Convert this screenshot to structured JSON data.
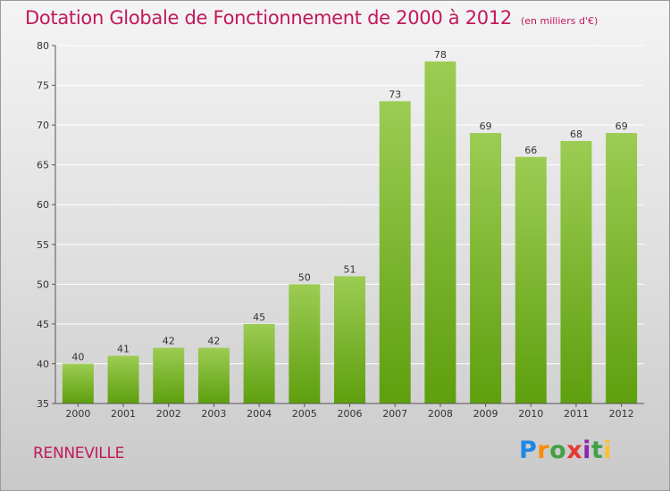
{
  "title": "Dotation Globale de Fonctionnement de 2000 à 2012",
  "subtitle": "(en milliers d'€)",
  "commune": "RENNEVILLE",
  "logo": {
    "text": "Proxiti",
    "letters": [
      {
        "ch": "P",
        "color": "#1e88e5"
      },
      {
        "ch": "r",
        "color": "#fb8c00"
      },
      {
        "ch": "o",
        "color": "#43a047"
      },
      {
        "ch": "x",
        "color": "#e53935"
      },
      {
        "ch": "i",
        "color": "#8e24aa"
      },
      {
        "ch": "t",
        "color": "#43a047"
      },
      {
        "ch": "i",
        "color": "#fbc02d"
      }
    ]
  },
  "colors": {
    "title": "#c2185b",
    "bar_top": "#9ccc53",
    "bar_bottom": "#5e9f0e",
    "grid": "#ffffff",
    "axis": "#555555"
  },
  "chart_data": {
    "type": "bar",
    "categories": [
      "2000",
      "2001",
      "2002",
      "2003",
      "2004",
      "2005",
      "2006",
      "2007",
      "2008",
      "2009",
      "2010",
      "2011",
      "2012"
    ],
    "values": [
      40,
      41,
      42,
      42,
      45,
      50,
      51,
      73,
      78,
      69,
      66,
      68,
      69
    ],
    "ylim": [
      35,
      80
    ],
    "yticks": [
      35,
      40,
      45,
      50,
      55,
      60,
      65,
      70,
      75,
      80
    ],
    "grid": true,
    "data_labels": true
  }
}
